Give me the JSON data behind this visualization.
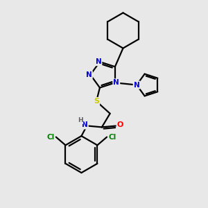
{
  "bg_color": "#e8e8e8",
  "atom_colors": {
    "N": "#0000cc",
    "O": "#ff0000",
    "S": "#cccc00",
    "Cl": "#008000",
    "C": "#000000",
    "H": "#606060"
  },
  "bond_color": "#000000",
  "bond_width": 1.6,
  "figsize": [
    3.0,
    3.0
  ],
  "dpi": 100,
  "scale": 1.0
}
